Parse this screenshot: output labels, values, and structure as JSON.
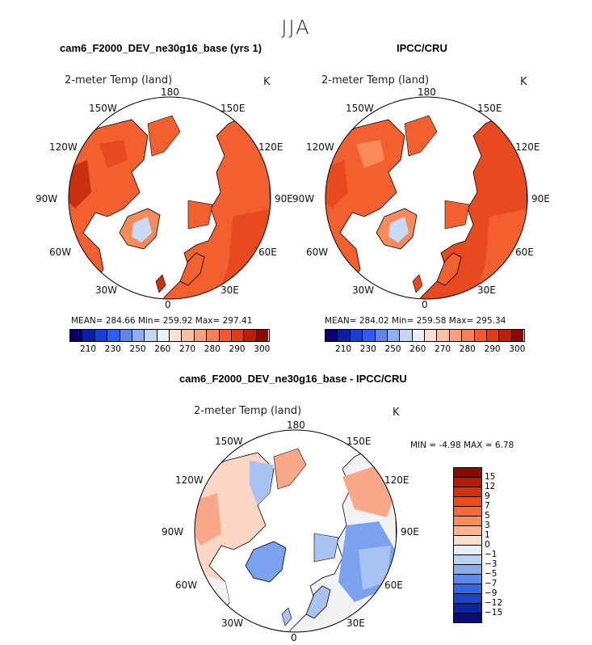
{
  "figure": {
    "season": "JJA",
    "panels": [
      {
        "title": "cam6_F2000_DEV_ne30g16_base (yrs 1)",
        "variable": "2-meter Temp (land)",
        "unit": "K",
        "stats": "MEAN= 284.66   Min= 259.92   Max= 297.41"
      },
      {
        "title": "IPCC/CRU",
        "variable": "2-meter Temp (land)",
        "unit": "K",
        "stats": "MEAN= 284.02   Min= 259.58   Max= 295.34"
      },
      {
        "title": "cam6_F2000_DEV_ne30g16_base - IPCC/CRU",
        "variable": "2-meter Temp (land)",
        "unit": "K",
        "stats": "MIN =   -4.98 MAX =    6.78"
      }
    ],
    "lon_labels": {
      "top": "180",
      "tr": "150E",
      "r1": "120E",
      "r2": "90E",
      "r3": "60E",
      "br": "30E",
      "bottom": "0",
      "bl": "30W",
      "l3": "60W",
      "l2": "90W",
      "l1": "120W",
      "tl": "150W"
    },
    "abs_colorbar": {
      "labels": [
        "210",
        "230",
        "250",
        "260",
        "270",
        "280",
        "290",
        "300"
      ],
      "colors": [
        "#08006e",
        "#0a1fa6",
        "#1440d6",
        "#2e5ef0",
        "#5a86f0",
        "#8fb0f0",
        "#c2d6f5",
        "#e8f0fb",
        "#fde0cc",
        "#fcc0a0",
        "#fba07a",
        "#f88052",
        "#f25a2e",
        "#e03a16",
        "#bb1f0a",
        "#8a0a04"
      ]
    },
    "diff_colorbar": {
      "labels": [
        "15",
        "12",
        "9",
        "7",
        "5",
        "3",
        "1",
        "0",
        "−1",
        "−3",
        "−5",
        "−7",
        "−9",
        "−12",
        "−15"
      ],
      "colors": [
        "#8c0a04",
        "#b51a08",
        "#d8300e",
        "#ef4a1c",
        "#f76a34",
        "#fb8c58",
        "#fcb48c",
        "#fde0cc",
        "#e8f0fb",
        "#bcd2f5",
        "#8aaef0",
        "#5c88ee",
        "#3566e6",
        "#1a44cc",
        "#0a24a6",
        "#080c78"
      ]
    },
    "map_colors": {
      "land_warm": "#f26030",
      "land_warmer": "#e84a20",
      "land_hot": "#c8300f",
      "land_mild": "#f88a5a",
      "ice_cold": "#c8daf5",
      "diff_pos": "#f8a888",
      "diff_pos_light": "#fbd6c4",
      "diff_neg": "#a8c2f2",
      "diff_neg_strong": "#7aa2ee",
      "diff_neutral": "#f2f2f4"
    }
  }
}
